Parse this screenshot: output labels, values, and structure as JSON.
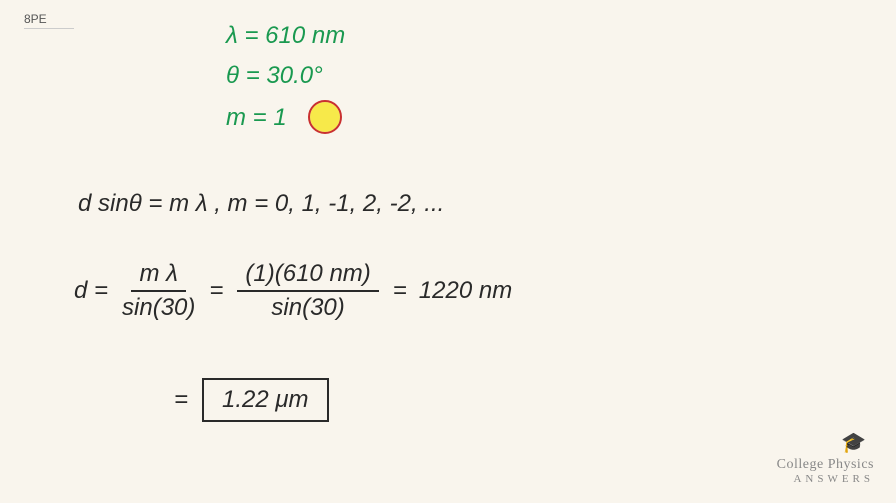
{
  "pageLabel": "8PE",
  "given": {
    "lambda": "λ = 610 nm",
    "theta": "θ = 30.0°",
    "m_prefix": "m = ",
    "m_value": "1"
  },
  "equations": {
    "formula": "d sinθ = m λ ,   m = 0, 1, -1, 2, -2, ...",
    "d_lhs": "d =",
    "frac1_num": "m λ",
    "frac1_den": "sin(30)",
    "equals1": "=",
    "frac2_num": "(1)(610 nm)",
    "frac2_den": "sin(30)",
    "equals2": "=",
    "result_nm": "1220 nm",
    "equals3": "=",
    "final_answer": "1.22 μm"
  },
  "logo": {
    "title": "College Physics",
    "subtitle": "ANSWERS"
  },
  "colors": {
    "background": "#f9f5ed",
    "givenText": "#1a9950",
    "bodyText": "#2a2a2a",
    "highlight": "#f7e94a",
    "redCircle": "#c93030",
    "logoText": "#888"
  }
}
